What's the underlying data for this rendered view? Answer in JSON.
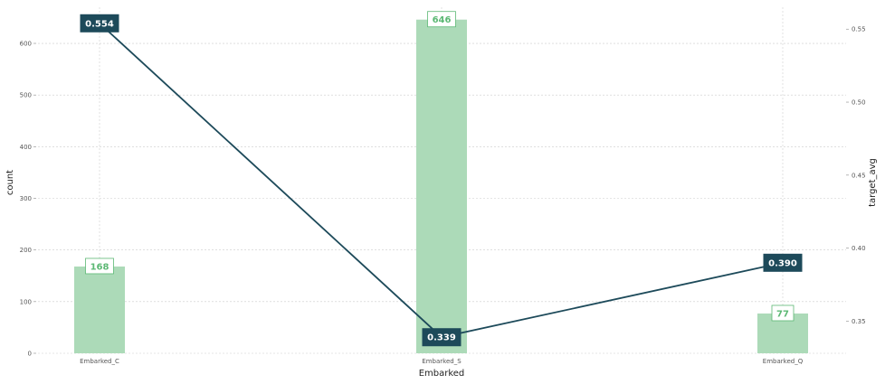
{
  "chart_data": {
    "type": "bar",
    "xlabel": "Embarked",
    "ylabel": "count",
    "y2label": "target_avg",
    "categories": [
      "Embarked_C",
      "Embarked_S",
      "Embarked_Q"
    ],
    "series": [
      {
        "name": "count",
        "type": "bar",
        "axis": "left",
        "values": [
          168,
          646,
          77
        ],
        "labels": [
          "168",
          "646",
          "77"
        ]
      },
      {
        "name": "target_avg",
        "type": "line",
        "axis": "right",
        "values": [
          0.554,
          0.339,
          0.39
        ],
        "labels": [
          "0.554",
          "0.339",
          "0.390"
        ]
      }
    ],
    "ylim": [
      0,
      670
    ],
    "y2lim": [
      0.328,
      0.565
    ],
    "yticks": [
      "0",
      "100",
      "200",
      "300",
      "400",
      "500",
      "600"
    ],
    "y2ticks": [
      "0.35",
      "0.40",
      "0.45",
      "0.50",
      "0.55"
    ],
    "grid": true,
    "colors": {
      "bar": "#acdab8",
      "bar_label": "#5cb874",
      "line": "#1d4a5a",
      "grid": "#cccccc",
      "axis_text": "#555555"
    }
  }
}
